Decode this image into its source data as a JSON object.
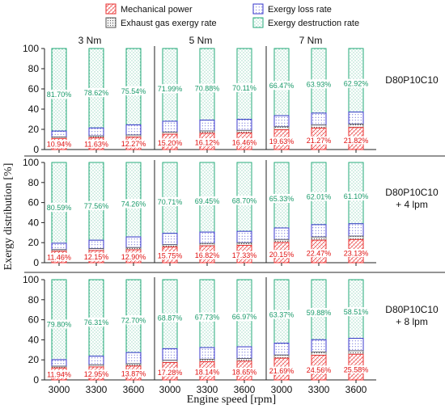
{
  "chart_data": {
    "type": "bar",
    "stacked": true,
    "xlabel": "Engine speed [rpm]",
    "ylabel": "Exergy distribution  [%]",
    "ylim": [
      0,
      100
    ],
    "yticks": [
      0,
      20,
      40,
      60,
      80,
      100
    ],
    "x_ticks": [
      "3000",
      "3300",
      "3600",
      "3000",
      "3300",
      "3600",
      "3000",
      "3300",
      "3600"
    ],
    "torque_groups": [
      "3 Nm",
      "5 Nm",
      "7 Nm"
    ],
    "legend": {
      "position": "top",
      "items": [
        {
          "name": "Mechanical power",
          "color": "#e83030"
        },
        {
          "name": "Exergy loss rate",
          "color": "#3a3acc"
        },
        {
          "name": "Exhaust gas exergy rate",
          "color": "#555555"
        },
        {
          "name": "Exergy destruction rate",
          "color": "#22aa77"
        }
      ]
    },
    "colors": {
      "mechanical": "#e83030",
      "exhaust": "#555555",
      "loss": "#3a3acc",
      "destruction": "#22aa77",
      "destruction_label": "#1a9a6a",
      "mechanical_label": "#e01010"
    },
    "panels": [
      {
        "label_lines": [
          "D80P10C10"
        ],
        "mechanical": [
          10.94,
          11.63,
          12.27,
          15.2,
          16.12,
          16.46,
          19.63,
          21.27,
          21.82
        ],
        "exhaust": [
          1.5,
          1.8,
          2.1,
          2.1,
          2.3,
          2.5,
          2.9,
          3.1,
          3.3
        ],
        "destruction": [
          81.7,
          78.62,
          75.54,
          71.99,
          70.88,
          70.11,
          66.47,
          63.93,
          62.92
        ],
        "mechanical_labels": [
          "10.94%",
          "11.63%",
          "12.27%",
          "15.20%",
          "16.12%",
          "16.46%",
          "19.63%",
          "21.27%",
          "21.82%"
        ],
        "destruction_labels": [
          "81.70%",
          "78.62%",
          "75.54%",
          "71.99%",
          "70.88%",
          "70.11%",
          "66.47%",
          "63.93%",
          "62.92%"
        ]
      },
      {
        "label_lines": [
          "D80P10C10",
          "+ 4 lpm"
        ],
        "mechanical": [
          11.46,
          12.15,
          12.9,
          15.75,
          16.82,
          17.33,
          20.15,
          22.47,
          23.13
        ],
        "exhaust": [
          1.6,
          1.9,
          2.2,
          2.2,
          2.4,
          2.6,
          3.0,
          3.2,
          3.4
        ],
        "destruction": [
          80.59,
          77.56,
          74.26,
          70.71,
          69.45,
          68.7,
          65.33,
          62.01,
          61.1
        ],
        "mechanical_labels": [
          "11.46%",
          "12.15%",
          "12.90%",
          "15.75%",
          "16.82%",
          "17.33%",
          "20.15%",
          "22.47%",
          "23.13%"
        ],
        "destruction_labels": [
          "80.59%",
          "77.56%",
          "74.26%",
          "70.71%",
          "69.45%",
          "68.70%",
          "65.33%",
          "62.01%",
          "61.10%"
        ]
      },
      {
        "label_lines": [
          "D80P10C10",
          "+ 8 lpm"
        ],
        "mechanical": [
          11.94,
          12.95,
          13.87,
          17.28,
          18.14,
          18.65,
          21.69,
          24.56,
          25.58
        ],
        "exhaust": [
          1.7,
          2.0,
          2.3,
          2.3,
          2.5,
          2.7,
          3.1,
          3.3,
          3.5
        ],
        "destruction": [
          79.8,
          76.31,
          72.7,
          68.87,
          67.73,
          66.97,
          63.37,
          59.88,
          58.51
        ],
        "mechanical_labels": [
          "11.94%",
          "12.95%",
          "13.87%",
          "17.28%",
          "18.14%",
          "18.65%",
          "21.69%",
          "24.56%",
          "25.58%"
        ],
        "destruction_labels": [
          "79.80%",
          "76.31%",
          "72.70%",
          "68.87%",
          "67.73%",
          "66.97%",
          "63.37%",
          "59.88%",
          "58.51%"
        ]
      }
    ]
  }
}
